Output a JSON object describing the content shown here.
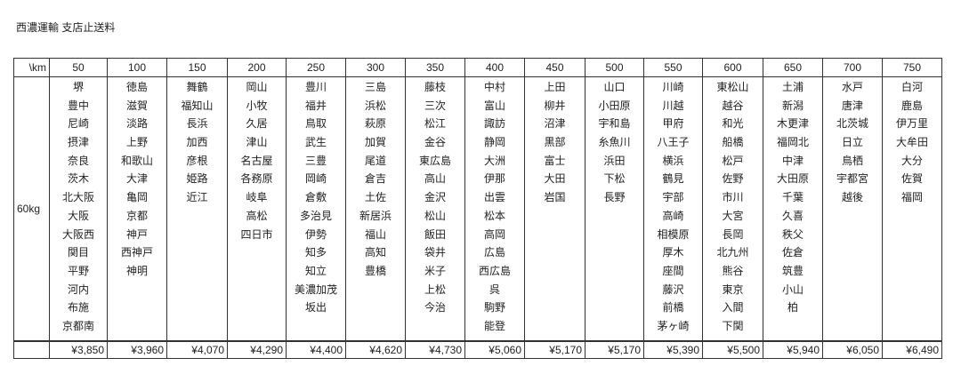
{
  "title": "西濃運輸 支店止送料",
  "table": {
    "corner_label": "\\km",
    "weight_label": "60kg",
    "columns": [
      {
        "km": "50",
        "price": "¥3,850",
        "branches": [
          "堺",
          "豊中",
          "尼崎",
          "摂津",
          "奈良",
          "茨木",
          "北大阪",
          "大阪",
          "大阪西",
          "関目",
          "平野",
          "河内",
          "布施",
          "京都南"
        ]
      },
      {
        "km": "100",
        "price": "¥3,960",
        "branches": [
          "徳島",
          "滋賀",
          "淡路",
          "上野",
          "和歌山",
          "大津",
          "亀岡",
          "京都",
          "神戸",
          "西神戸",
          "神明"
        ]
      },
      {
        "km": "150",
        "price": "¥4,070",
        "branches": [
          "舞鶴",
          "福知山",
          "長浜",
          "加西",
          "彦根",
          "姫路",
          "近江"
        ]
      },
      {
        "km": "200",
        "price": "¥4,290",
        "branches": [
          "岡山",
          "小牧",
          "久居",
          "津山",
          "名古屋",
          "各務原",
          "岐阜",
          "高松",
          "四日市"
        ]
      },
      {
        "km": "250",
        "price": "¥4,400",
        "branches": [
          "豊川",
          "福井",
          "鳥取",
          "武生",
          "三豊",
          "岡崎",
          "倉敷",
          "多治見",
          "伊勢",
          "知多",
          "知立",
          "美濃加茂",
          "坂出"
        ]
      },
      {
        "km": "300",
        "price": "¥4,620",
        "branches": [
          "三島",
          "浜松",
          "萩原",
          "加賀",
          "尾道",
          "倉吉",
          "土佐",
          "新居浜",
          "福山",
          "高知",
          "豊橋"
        ]
      },
      {
        "km": "350",
        "price": "¥4,730",
        "branches": [
          "藤枝",
          "三次",
          "松江",
          "金谷",
          "東広島",
          "高山",
          "金沢",
          "松山",
          "飯田",
          "袋井",
          "米子",
          "上松",
          "今治"
        ]
      },
      {
        "km": "400",
        "price": "¥5,060",
        "branches": [
          "中村",
          "富山",
          "諏訪",
          "静岡",
          "大洲",
          "伊那",
          "出雲",
          "松本",
          "高岡",
          "広島",
          "西広島",
          "呉",
          "駒野",
          "能登"
        ]
      },
      {
        "km": "450",
        "price": "¥5,170",
        "branches": [
          "上田",
          "柳井",
          "沼津",
          "黒部",
          "富士",
          "大田",
          "岩国"
        ]
      },
      {
        "km": "500",
        "price": "¥5,170",
        "branches": [
          "山口",
          "小田原",
          "宇和島",
          "糸魚川",
          "浜田",
          "下松",
          "長野"
        ]
      },
      {
        "km": "550",
        "price": "¥5,390",
        "branches": [
          "川崎",
          "川越",
          "甲府",
          "八王子",
          "横浜",
          "鶴見",
          "宇部",
          "高崎",
          "相模原",
          "厚木",
          "座間",
          "藤沢",
          "前橋",
          "茅ヶ崎"
        ]
      },
      {
        "km": "600",
        "price": "¥5,500",
        "branches": [
          "東松山",
          "越谷",
          "和光",
          "船橋",
          "松戸",
          "佐野",
          "市川",
          "大宮",
          "長岡",
          "北九州",
          "熊谷",
          "東京",
          "入間",
          "下関"
        ]
      },
      {
        "km": "650",
        "price": "¥5,940",
        "branches": [
          "土浦",
          "新潟",
          "木更津",
          "福岡北",
          "中津",
          "大田原",
          "千葉",
          "久喜",
          "秩父",
          "佐倉",
          "筑豊",
          "小山",
          "柏"
        ]
      },
      {
        "km": "700",
        "price": "¥6,050",
        "branches": [
          "水戸",
          "唐津",
          "北茨城",
          "日立",
          "鳥栖",
          "宇都宮",
          "越後"
        ]
      },
      {
        "km": "750",
        "price": "¥6,490",
        "branches": [
          "白河",
          "鹿島",
          "伊万里",
          "大牟田",
          "大分",
          "佐賀",
          "福岡"
        ]
      }
    ]
  }
}
